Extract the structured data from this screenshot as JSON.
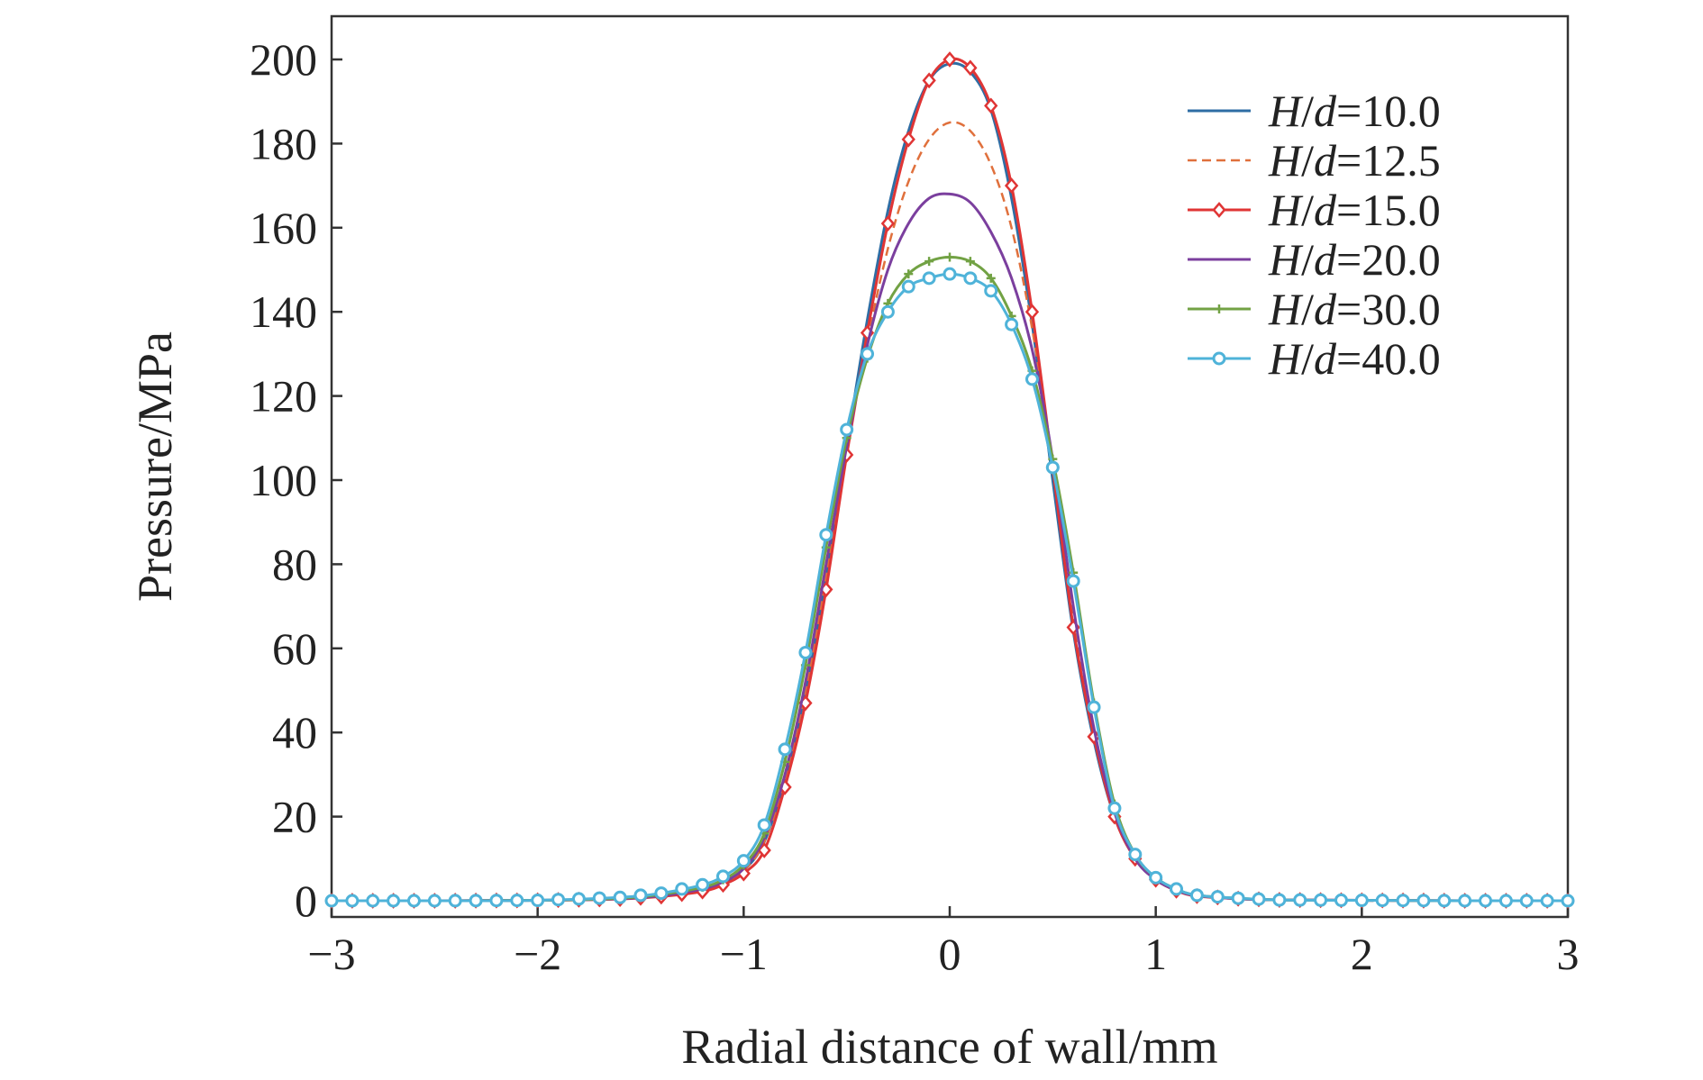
{
  "chart_data": {
    "type": "line",
    "title": "",
    "xlabel": "Radial distance of wall/mm",
    "ylabel": "Pressure/MPa",
    "xlim": [
      -3,
      3
    ],
    "ylim": [
      0,
      210
    ],
    "xticks": [
      -3,
      -2,
      -1,
      0,
      1,
      2,
      3
    ],
    "xtick_labels": [
      "−3",
      "−2",
      "−1",
      "0",
      "1",
      "2",
      "3"
    ],
    "yticks": [
      0,
      20,
      40,
      60,
      80,
      100,
      120,
      140,
      160,
      180,
      200
    ],
    "ytick_labels": [
      "0",
      "20",
      "40",
      "60",
      "80",
      "100",
      "120",
      "140",
      "160",
      "180",
      "200"
    ],
    "legend_position": "top-right",
    "x": [
      -3,
      -2.5,
      -2,
      -1.6,
      -1.4,
      -1.2,
      -1.1,
      -1,
      -0.9,
      -0.8,
      -0.7,
      -0.6,
      -0.5,
      -0.4,
      -0.3,
      -0.2,
      -0.1,
      0,
      0.1,
      0.2,
      0.3,
      0.4,
      0.5,
      0.6,
      0.7,
      0.8,
      0.9,
      1,
      1.1,
      1.2,
      1.4,
      1.6,
      2,
      2.5,
      3
    ],
    "series": [
      {
        "name_italic_1": "H",
        "name_sep": "/",
        "name_italic_2": "d",
        "name_value": "=10.0",
        "color": "#2e6da4",
        "style": "solid",
        "marker": "none",
        "values": [
          0,
          0,
          0.1,
          0.5,
          1.2,
          2.7,
          4.3,
          7.2,
          14,
          29,
          50,
          77,
          108,
          138,
          164,
          183,
          195,
          199,
          197,
          188,
          167,
          137,
          100,
          64,
          38,
          20,
          10,
          5,
          2.5,
          1.2,
          0.5,
          0.2,
          0.1,
          0,
          0
        ]
      },
      {
        "name_italic_1": "H",
        "name_sep": "/",
        "name_italic_2": "d",
        "name_value": "=12.5",
        "color": "#e0703c",
        "style": "dashed",
        "marker": "none",
        "values": [
          0,
          0,
          0.1,
          0.5,
          1.2,
          2.7,
          4.3,
          7.2,
          14,
          29,
          50,
          77,
          107,
          133,
          155,
          171,
          181,
          185,
          183,
          175,
          160,
          136,
          104,
          68,
          40,
          21,
          10,
          5,
          2.5,
          1.2,
          0.5,
          0.2,
          0.1,
          0,
          0
        ]
      },
      {
        "name_italic_1": "H",
        "name_sep": "/",
        "name_italic_2": "d",
        "name_value": "=15.0",
        "color": "#e03535",
        "style": "solid",
        "marker": "diamond",
        "values": [
          0,
          0,
          0.1,
          0.4,
          1,
          2.2,
          3.8,
          6.5,
          12,
          27,
          47,
          74,
          106,
          135,
          161,
          181,
          195,
          200,
          198,
          189,
          170,
          140,
          103,
          65,
          39,
          20,
          10,
          5,
          2.4,
          1.1,
          0.5,
          0.2,
          0.1,
          0,
          0
        ]
      },
      {
        "name_italic_1": "H",
        "name_sep": "/",
        "name_italic_2": "d",
        "name_value": "=20.0",
        "color": "#7b3f9e",
        "style": "solid",
        "marker": "none",
        "values": [
          0,
          0,
          0.1,
          0.5,
          1.2,
          2.8,
          4.5,
          7.6,
          15,
          30,
          52,
          80,
          108,
          132,
          150,
          161,
          167,
          168,
          166,
          159,
          148,
          131,
          105,
          70,
          41,
          21,
          10,
          5,
          2.5,
          1.2,
          0.5,
          0.2,
          0.1,
          0,
          0
        ]
      },
      {
        "name_italic_1": "H",
        "name_sep": "/",
        "name_italic_2": "d",
        "name_value": "=30.0",
        "color": "#72a244",
        "style": "solid",
        "marker": "plus",
        "values": [
          0,
          0,
          0.1,
          0.6,
          1.5,
          3.2,
          5,
          8.5,
          16,
          33,
          56,
          84,
          110,
          129,
          142,
          149,
          152,
          153,
          152,
          148,
          139,
          126,
          105,
          78,
          47,
          23,
          11,
          5.5,
          2.8,
          1.3,
          0.6,
          0.2,
          0.1,
          0,
          0
        ]
      },
      {
        "name_italic_1": "H",
        "name_sep": "/",
        "name_italic_2": "d",
        "name_value": "=40.0",
        "color": "#4fb3d9",
        "style": "solid",
        "marker": "circle",
        "values": [
          0,
          0,
          0.1,
          0.8,
          1.8,
          3.8,
          5.8,
          9.5,
          18,
          36,
          59,
          87,
          112,
          130,
          140,
          146,
          148,
          149,
          148,
          145,
          137,
          124,
          103,
          76,
          46,
          22,
          11,
          5.5,
          2.8,
          1.3,
          0.6,
          0.2,
          0.1,
          0,
          0
        ]
      }
    ]
  }
}
